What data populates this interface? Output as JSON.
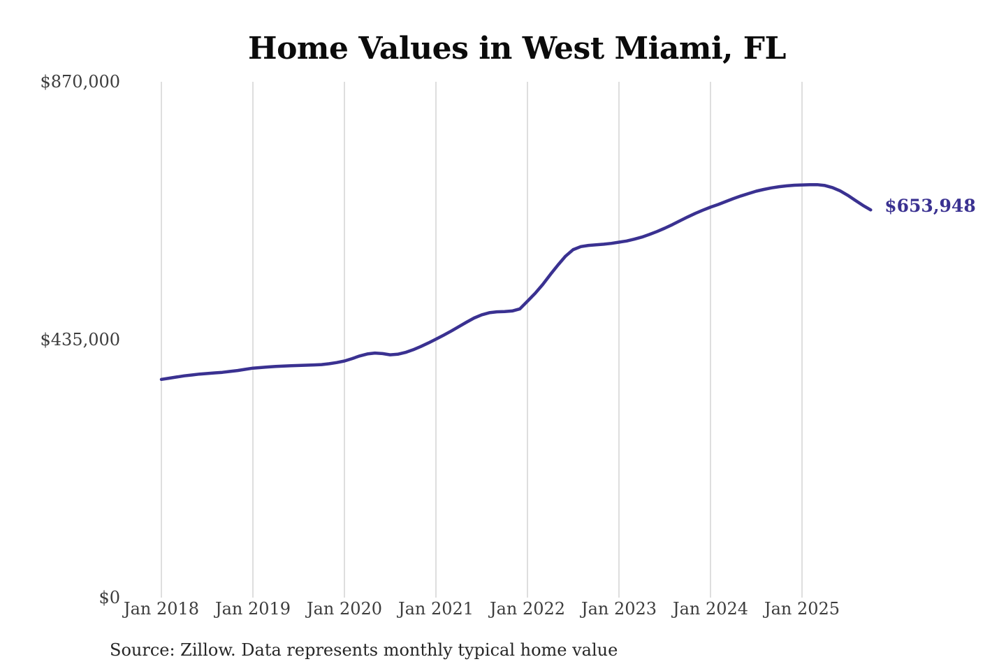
{
  "title": "Home Values in West Miami, FL",
  "source_note": "Source: Zillow. Data represents monthly typical home value",
  "end_label": "$653,948",
  "colors": {
    "line": "#3A3191",
    "gridline": "#CCCCCC",
    "axis_text": "#3D3D3D",
    "title_text": "#0B0B0B",
    "background": "#FFFFFF"
  },
  "chart_data": {
    "type": "line",
    "title": "Home Values in West Miami, FL",
    "xlabel": "",
    "ylabel": "",
    "ylim": [
      0,
      870000
    ],
    "grid": "vertical-only",
    "legend": "none",
    "x_tick_labels": [
      "Jan 2018",
      "Jan 2019",
      "Jan 2020",
      "Jan 2021",
      "Jan 2022",
      "Jan 2023",
      "Jan 2024",
      "Jan 2025"
    ],
    "y_ticks": [
      {
        "label": "$0",
        "value": 0
      },
      {
        "label": "$435,000",
        "value": 435000
      },
      {
        "label": "$870,000",
        "value": 870000
      }
    ],
    "final_value": 653948,
    "final_value_label": "$653,948",
    "series": [
      {
        "name": "Monthly typical home value",
        "months": [
          "2018-01",
          "2018-02",
          "2018-03",
          "2018-04",
          "2018-05",
          "2018-06",
          "2018-07",
          "2018-08",
          "2018-09",
          "2018-10",
          "2018-11",
          "2018-12",
          "2019-01",
          "2019-02",
          "2019-03",
          "2019-04",
          "2019-05",
          "2019-06",
          "2019-07",
          "2019-08",
          "2019-09",
          "2019-10",
          "2019-11",
          "2019-12",
          "2020-01",
          "2020-02",
          "2020-03",
          "2020-04",
          "2020-05",
          "2020-06",
          "2020-07",
          "2020-08",
          "2020-09",
          "2020-10",
          "2020-11",
          "2020-12",
          "2021-01",
          "2021-02",
          "2021-03",
          "2021-04",
          "2021-05",
          "2021-06",
          "2021-07",
          "2021-08",
          "2021-09",
          "2021-10",
          "2021-11",
          "2021-12",
          "2022-01",
          "2022-02",
          "2022-03",
          "2022-04",
          "2022-05",
          "2022-06",
          "2022-07",
          "2022-08",
          "2022-09",
          "2022-10",
          "2022-11",
          "2022-12",
          "2023-01",
          "2023-02",
          "2023-03",
          "2023-04",
          "2023-05",
          "2023-06",
          "2023-07",
          "2023-08",
          "2023-09",
          "2023-10",
          "2023-11",
          "2023-12",
          "2024-01",
          "2024-02",
          "2024-03",
          "2024-04",
          "2024-05",
          "2024-06",
          "2024-07",
          "2024-08",
          "2024-09",
          "2024-10",
          "2024-11",
          "2024-12",
          "2025-01",
          "2025-02",
          "2025-03",
          "2025-04",
          "2025-05",
          "2025-06",
          "2025-07",
          "2025-08",
          "2025-09",
          "2025-10"
        ],
        "values": [
          368000,
          370000,
          372000,
          374000,
          375500,
          377000,
          378000,
          379000,
          380000,
          381500,
          383000,
          385000,
          387000,
          388000,
          389000,
          390000,
          390500,
          391000,
          391500,
          392000,
          392500,
          393000,
          394500,
          396500,
          399000,
          403000,
          407500,
          411000,
          412500,
          411500,
          409500,
          410500,
          413500,
          418000,
          423500,
          429500,
          436000,
          442500,
          449500,
          457000,
          464500,
          471500,
          477000,
          480500,
          482000,
          482500,
          483500,
          487000,
          500000,
          513000,
          528000,
          545000,
          561000,
          576000,
          587000,
          592000,
          594000,
          595000,
          596000,
          597500,
          599500,
          601500,
          604500,
          608000,
          612500,
          617500,
          623000,
          629000,
          635500,
          642000,
          648000,
          653500,
          658500,
          663000,
          668000,
          673000,
          677500,
          681500,
          685500,
          688500,
          691000,
          693000,
          694500,
          695500,
          696000,
          696500,
          696500,
          695000,
          691500,
          686000,
          678500,
          670000,
          661500,
          653948
        ]
      }
    ]
  }
}
